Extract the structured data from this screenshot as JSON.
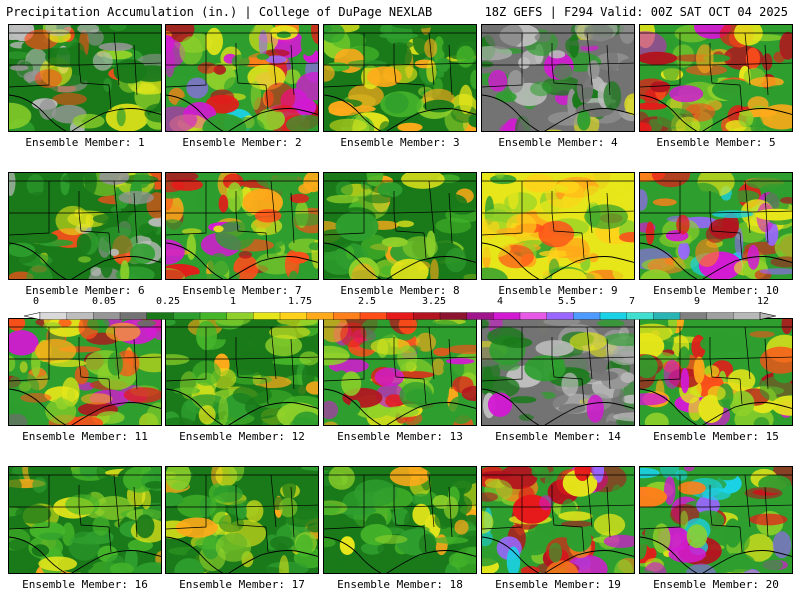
{
  "header": {
    "title_left": "Precipitation Accumulation (in.) | College of DuPage NEXLAB",
    "title_right": "18Z GEFS | F294 Valid: 00Z SAT OCT 04 2025"
  },
  "panels": [
    {
      "label": "Ensemble Member: 1",
      "tone": "green-gray"
    },
    {
      "label": "Ensemble Member: 2",
      "tone": "wet-south"
    },
    {
      "label": "Ensemble Member: 3",
      "tone": "green"
    },
    {
      "label": "Ensemble Member: 4",
      "tone": "gray"
    },
    {
      "label": "Ensemble Member: 5",
      "tone": "wet"
    },
    {
      "label": "Ensemble Member: 6",
      "tone": "green-gray"
    },
    {
      "label": "Ensemble Member: 7",
      "tone": "wet"
    },
    {
      "label": "Ensemble Member: 8",
      "tone": "green"
    },
    {
      "label": "Ensemble Member: 9",
      "tone": "yellow"
    },
    {
      "label": "Ensemble Member: 10",
      "tone": "wet-south"
    },
    {
      "label": "Ensemble Member: 11",
      "tone": "wet"
    },
    {
      "label": "Ensemble Member: 12",
      "tone": "green"
    },
    {
      "label": "Ensemble Member: 13",
      "tone": "wet"
    },
    {
      "label": "Ensemble Member: 14",
      "tone": "gray"
    },
    {
      "label": "Ensemble Member: 15",
      "tone": "wet"
    },
    {
      "label": "Ensemble Member: 16",
      "tone": "green"
    },
    {
      "label": "Ensemble Member: 17",
      "tone": "green"
    },
    {
      "label": "Ensemble Member: 18",
      "tone": "green"
    },
    {
      "label": "Ensemble Member: 19",
      "tone": "wet-south"
    },
    {
      "label": "Ensemble Member: 20",
      "tone": "wet-south"
    }
  ],
  "colorbar": {
    "tick_labels": [
      "0",
      "0.05",
      "0.25",
      "1",
      "1.75",
      "2.5",
      "3.25",
      "4",
      "5.5",
      "7",
      "9",
      "12"
    ],
    "colors": [
      "#d9d9d9",
      "#bdbdbd",
      "#969696",
      "#737373",
      "#1a7a1a",
      "#2e9e2e",
      "#45b52a",
      "#8fd12a",
      "#e6e61a",
      "#ffd11a",
      "#ffaa1a",
      "#ff7f1a",
      "#ff4d1a",
      "#e61a1a",
      "#b3141f",
      "#8c1430",
      "#a0148c",
      "#d21ad2",
      "#e65ae6",
      "#9966ff",
      "#4d9bff",
      "#1ad2e6",
      "#40e0d0",
      "#2ab4b4",
      "#808080",
      "#a0a0a0",
      "#b8b8b8"
    ]
  },
  "colors": {
    "border": "#000000",
    "background": "#ffffff"
  }
}
